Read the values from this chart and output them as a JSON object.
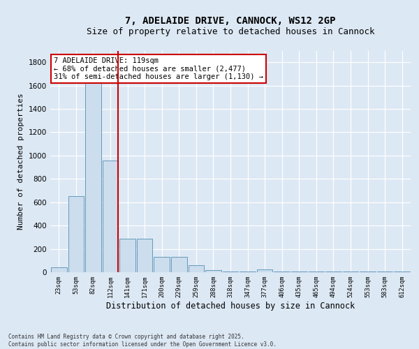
{
  "title": "7, ADELAIDE DRIVE, CANNOCK, WS12 2GP",
  "subtitle": "Size of property relative to detached houses in Cannock",
  "xlabel": "Distribution of detached houses by size in Cannock",
  "ylabel": "Number of detached properties",
  "categories": [
    "23sqm",
    "53sqm",
    "82sqm",
    "112sqm",
    "141sqm",
    "171sqm",
    "200sqm",
    "229sqm",
    "259sqm",
    "288sqm",
    "318sqm",
    "347sqm",
    "377sqm",
    "406sqm",
    "435sqm",
    "465sqm",
    "494sqm",
    "524sqm",
    "553sqm",
    "583sqm",
    "612sqm"
  ],
  "values": [
    40,
    650,
    1700,
    960,
    285,
    285,
    130,
    130,
    60,
    15,
    5,
    5,
    25,
    5,
    5,
    5,
    5,
    5,
    5,
    5,
    5
  ],
  "bar_color": "#ccdded",
  "bar_edge_color": "#6699bb",
  "redline_index": 3,
  "redline_color": "#cc0000",
  "annotation_text": "7 ADELAIDE DRIVE: 119sqm\n← 68% of detached houses are smaller (2,477)\n31% of semi-detached houses are larger (1,130) →",
  "annotation_box_color": "#ffffff",
  "annotation_box_edge": "#cc0000",
  "bg_color": "#dce8f4",
  "plot_bg_color": "#dce8f4",
  "footer": "Contains HM Land Registry data © Crown copyright and database right 2025.\nContains public sector information licensed under the Open Government Licence v3.0.",
  "ylim": [
    0,
    1900
  ],
  "yticks": [
    0,
    200,
    400,
    600,
    800,
    1000,
    1200,
    1400,
    1600,
    1800
  ],
  "title_fontsize": 10,
  "subtitle_fontsize": 9,
  "ylabel_fontsize": 8,
  "xlabel_fontsize": 8.5,
  "annotation_fontsize": 7.5,
  "footer_fontsize": 5.5
}
